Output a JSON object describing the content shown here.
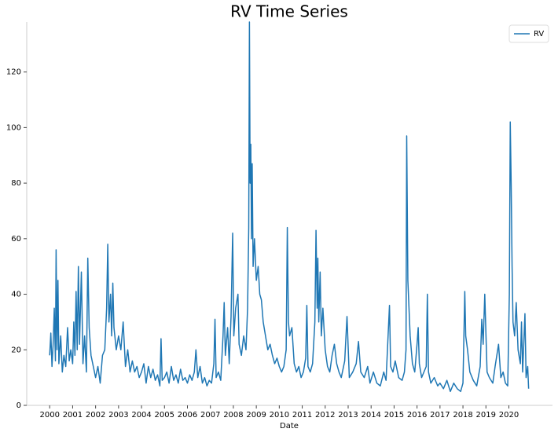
{
  "chart_data": {
    "type": "line",
    "title": "RV Time Series",
    "x_label": "Date",
    "x": [
      2000.0,
      2000.05,
      2000.1,
      2000.15,
      2000.2,
      2000.25,
      2000.28,
      2000.32,
      2000.36,
      2000.4,
      2000.48,
      2000.55,
      2000.62,
      2000.7,
      2000.78,
      2000.85,
      2000.92,
      2001.0,
      2001.05,
      2001.1,
      2001.15,
      2001.2,
      2001.25,
      2001.3,
      2001.38,
      2001.45,
      2001.52,
      2001.6,
      2001.66,
      2001.72,
      2001.8,
      2001.9,
      2002.0,
      2002.1,
      2002.2,
      2002.3,
      2002.4,
      2002.48,
      2002.53,
      2002.58,
      2002.65,
      2002.7,
      2002.75,
      2002.8,
      2002.9,
      2003.0,
      2003.1,
      2003.2,
      2003.3,
      2003.4,
      2003.5,
      2003.6,
      2003.7,
      2003.8,
      2003.9,
      2004.0,
      2004.1,
      2004.2,
      2004.3,
      2004.4,
      2004.5,
      2004.6,
      2004.7,
      2004.8,
      2004.85,
      2004.9,
      2005.0,
      2005.1,
      2005.2,
      2005.3,
      2005.4,
      2005.5,
      2005.6,
      2005.7,
      2005.8,
      2005.9,
      2006.0,
      2006.1,
      2006.2,
      2006.3,
      2006.37,
      2006.45,
      2006.55,
      2006.65,
      2006.75,
      2006.85,
      2006.95,
      2007.05,
      2007.15,
      2007.2,
      2007.25,
      2007.35,
      2007.45,
      2007.55,
      2007.6,
      2007.65,
      2007.75,
      2007.82,
      2007.9,
      2007.97,
      2008.02,
      2008.1,
      2008.2,
      2008.25,
      2008.35,
      2008.45,
      2008.55,
      2008.62,
      2008.67,
      2008.7,
      2008.73,
      2008.76,
      2008.79,
      2008.82,
      2008.86,
      2008.92,
      2009.0,
      2009.08,
      2009.15,
      2009.22,
      2009.3,
      2009.4,
      2009.5,
      2009.6,
      2009.7,
      2009.8,
      2009.9,
      2010.0,
      2010.1,
      2010.2,
      2010.3,
      2010.35,
      2010.4,
      2010.45,
      2010.55,
      2010.65,
      2010.75,
      2010.85,
      2010.95,
      2011.05,
      2011.15,
      2011.2,
      2011.25,
      2011.35,
      2011.45,
      2011.55,
      2011.6,
      2011.65,
      2011.68,
      2011.72,
      2011.78,
      2011.83,
      2011.9,
      2012.0,
      2012.1,
      2012.2,
      2012.3,
      2012.4,
      2012.5,
      2012.6,
      2012.7,
      2012.85,
      2012.95,
      2013.05,
      2013.2,
      2013.35,
      2013.45,
      2013.55,
      2013.7,
      2013.85,
      2013.95,
      2014.1,
      2014.25,
      2014.4,
      2014.55,
      2014.65,
      2014.8,
      2014.85,
      2014.95,
      2015.05,
      2015.2,
      2015.35,
      2015.45,
      2015.52,
      2015.55,
      2015.6,
      2015.7,
      2015.8,
      2015.9,
      2016.0,
      2016.05,
      2016.1,
      2016.2,
      2016.4,
      2016.45,
      2016.5,
      2016.6,
      2016.75,
      2016.9,
      2017.0,
      2017.15,
      2017.3,
      2017.45,
      2017.6,
      2017.75,
      2017.9,
      2018.0,
      2018.08,
      2018.12,
      2018.2,
      2018.3,
      2018.45,
      2018.6,
      2018.75,
      2018.82,
      2018.88,
      2018.95,
      2019.05,
      2019.15,
      2019.3,
      2019.4,
      2019.55,
      2019.65,
      2019.75,
      2019.85,
      2019.95,
      2020.02,
      2020.06,
      2020.1,
      2020.14,
      2020.18,
      2020.25,
      2020.32,
      2020.4,
      2020.5,
      2020.55,
      2020.6,
      2020.7,
      2020.75,
      2020.82,
      2020.86
    ],
    "series": [
      {
        "name": "RV",
        "color": "#1f77b4",
        "values": [
          18,
          26,
          14,
          22,
          35,
          16,
          56,
          20,
          45,
          15,
          25,
          12,
          18,
          14,
          28,
          16,
          20,
          15,
          30,
          18,
          41,
          20,
          50,
          22,
          48,
          15,
          25,
          12,
          53,
          28,
          18,
          14,
          10,
          14,
          8,
          18,
          20,
          35,
          58,
          30,
          40,
          25,
          44,
          28,
          20,
          25,
          20,
          30,
          14,
          20,
          12,
          16,
          12,
          14,
          10,
          12,
          15,
          8,
          14,
          10,
          13,
          9,
          11,
          7,
          24,
          9,
          10,
          12,
          8,
          14,
          9,
          11,
          8,
          13,
          9,
          10,
          8,
          11,
          9,
          12,
          20,
          10,
          14,
          8,
          10,
          7,
          9,
          8,
          15,
          31,
          10,
          12,
          9,
          25,
          37,
          18,
          28,
          15,
          32,
          62,
          25,
          35,
          40,
          22,
          18,
          25,
          20,
          35,
          64,
          138,
          80,
          94,
          60,
          87,
          50,
          60,
          45,
          50,
          40,
          38,
          30,
          25,
          20,
          22,
          18,
          15,
          17,
          14,
          12,
          14,
          20,
          64,
          30,
          25,
          28,
          15,
          12,
          14,
          10,
          12,
          17,
          36,
          14,
          12,
          15,
          30,
          63,
          35,
          53,
          30,
          48,
          25,
          35,
          20,
          14,
          12,
          18,
          22,
          15,
          12,
          10,
          16,
          32,
          10,
          12,
          15,
          23,
          12,
          10,
          14,
          8,
          12,
          8,
          7,
          12,
          9,
          36,
          14,
          12,
          16,
          10,
          9,
          12,
          20,
          97,
          45,
          25,
          15,
          12,
          22,
          28,
          15,
          10,
          14,
          40,
          12,
          8,
          10,
          7,
          8,
          6,
          9,
          5,
          8,
          6,
          5,
          8,
          41,
          25,
          20,
          12,
          9,
          7,
          14,
          31,
          22,
          40,
          12,
          10,
          8,
          14,
          22,
          10,
          12,
          8,
          7,
          40,
          102,
          80,
          50,
          30,
          25,
          37,
          20,
          15,
          30,
          12,
          33,
          10,
          14,
          6
        ]
      }
    ],
    "xlim": [
      1999.0,
      2021.9
    ],
    "ylim": [
      0,
      138
    ],
    "xticks": [
      2000,
      2001,
      2002,
      2003,
      2004,
      2005,
      2006,
      2007,
      2008,
      2009,
      2010,
      2011,
      2012,
      2013,
      2014,
      2015,
      2016,
      2017,
      2018,
      2019,
      2020
    ],
    "yticks": [
      0,
      20,
      40,
      60,
      80,
      100,
      120
    ],
    "grid": false,
    "legend": "upper right"
  }
}
